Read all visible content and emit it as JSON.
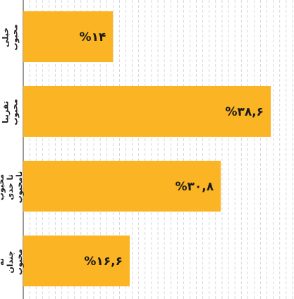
{
  "chart_data": {
    "type": "bar",
    "orientation": "horizontal",
    "categories": [
      "خیلی محبوب",
      "تقریبا محبوب",
      "محبوب تا حدی نامحبوب",
      "نه چندان محبوب"
    ],
    "values": [
      14,
      38.6,
      30.8,
      16.6
    ],
    "value_labels": [
      "%۱۴",
      "%۳۸,۶",
      "%۳۰,۸",
      "%۱۶,۶"
    ],
    "xlim": [
      0,
      42
    ],
    "grid": true,
    "colors": {
      "bar": "#FBB424",
      "grid": "#bfbfbf",
      "axis": "#333333"
    }
  }
}
